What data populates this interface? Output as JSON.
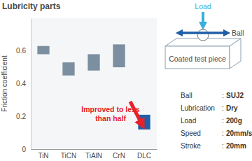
{
  "chart_data": {
    "type": "bar",
    "title": "Lubricity parts",
    "y_label": "Friction coefficient",
    "categories": [
      "TiN",
      "TiCN",
      "TiAlN",
      "CrN",
      "DLC"
    ],
    "values": [
      [
        0.58,
        0.63
      ],
      [
        0.45,
        0.53
      ],
      [
        0.48,
        0.58
      ],
      [
        0.5,
        0.64
      ],
      [
        0.12,
        0.21
      ]
    ],
    "colors": [
      "#7b8fa1",
      "#7b8fa1",
      "#7b8fa1",
      "#7b8fa1",
      "#1f5fa6"
    ],
    "ylim": [
      0,
      0.8
    ],
    "yticks": [
      0,
      0.2,
      0.4,
      0.6
    ],
    "grid": false,
    "annotation": [
      "Improved to less",
      "than half"
    ]
  },
  "test_setup": {
    "load_label": "Load",
    "ball_label": "Ball",
    "piece_label": "Coated test piece",
    "separator": ":",
    "conditions": [
      {
        "label": "Ball",
        "value": "SUJ2"
      },
      {
        "label": "Lubrication",
        "value": "Dry"
      },
      {
        "label": "Load",
        "value": "200g"
      },
      {
        "label": "Speed",
        "value": "20mm/s"
      },
      {
        "label": "Stroke",
        "value": "20mm"
      }
    ]
  }
}
